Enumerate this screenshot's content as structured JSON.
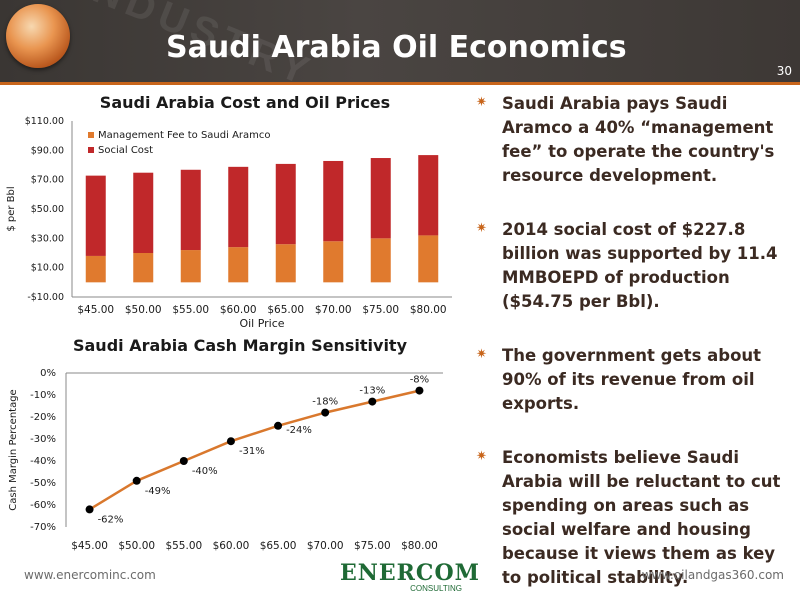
{
  "header": {
    "title": "Saudi Arabia Oil Economics",
    "watermark": "INDUSTRY",
    "page_number": "30"
  },
  "bullets": [
    "Saudi Arabia pays Saudi Aramco a 40% “management fee” to operate the country's resource development.",
    "2014 social cost of $227.8 billion was supported by 11.4 MMBOEPD of production ($54.75 per Bbl).",
    "The government gets about 90% of its revenue from oil exports.",
    "Economists believe Saudi Arabia will be reluctant to cut spending on areas such as social welfare and housing because it views them as key to political stability."
  ],
  "footer": {
    "left_url": "www.enercominc.com",
    "right_url": "www.oilandgas360.com",
    "logo_text": "ENERCOM",
    "logo_sub": "CONSULTING"
  },
  "colors": {
    "management_fee": "#e07a2e",
    "social_cost": "#c0282a",
    "line": "#d9782d",
    "accent": "#c8651b"
  },
  "chart_data": [
    {
      "type": "bar",
      "stacked": true,
      "title": "Saudi Arabia Cost and Oil Prices",
      "xlabel": "Oil Price",
      "ylabel": "$ per Bbl",
      "categories": [
        "$45.00",
        "$50.00",
        "$55.00",
        "$60.00",
        "$65.00",
        "$70.00",
        "$75.00",
        "$80.00"
      ],
      "yticks": [
        "-$10.00",
        "$10.00",
        "$30.00",
        "$50.00",
        "$70.00",
        "$90.00",
        "$110.00"
      ],
      "ytick_values": [
        -10,
        10,
        30,
        50,
        70,
        90,
        110
      ],
      "ylim": [
        -10,
        110
      ],
      "series": [
        {
          "name": "Management Fee to Saudi Aramco",
          "values": [
            18,
            20,
            22,
            24,
            26,
            28,
            30,
            32
          ]
        },
        {
          "name": "Social Cost",
          "values": [
            54.75,
            54.75,
            54.75,
            54.75,
            54.75,
            54.75,
            54.75,
            54.75
          ]
        }
      ],
      "legend": "top-left"
    },
    {
      "type": "line",
      "title": "Saudi Arabia Cash Margin Sensitivity",
      "ylabel": "Cash Margin Percentage",
      "categories": [
        "$45.00",
        "$50.00",
        "$55.00",
        "$60.00",
        "$65.00",
        "$70.00",
        "$75.00",
        "$80.00"
      ],
      "values": [
        -62,
        -49,
        -40,
        -31,
        -24,
        -18,
        -13,
        -8
      ],
      "data_labels": [
        "-62%",
        "-49%",
        "-40%",
        "-31%",
        "-24%",
        "-18%",
        "-13%",
        "-8%"
      ],
      "yticks": [
        "0%",
        "-10%",
        "-20%",
        "-30%",
        "-40%",
        "-50%",
        "-60%",
        "-70%"
      ],
      "ytick_values": [
        0,
        -10,
        -20,
        -30,
        -40,
        -50,
        -60,
        -70
      ],
      "ylim": [
        -70,
        0
      ]
    }
  ]
}
